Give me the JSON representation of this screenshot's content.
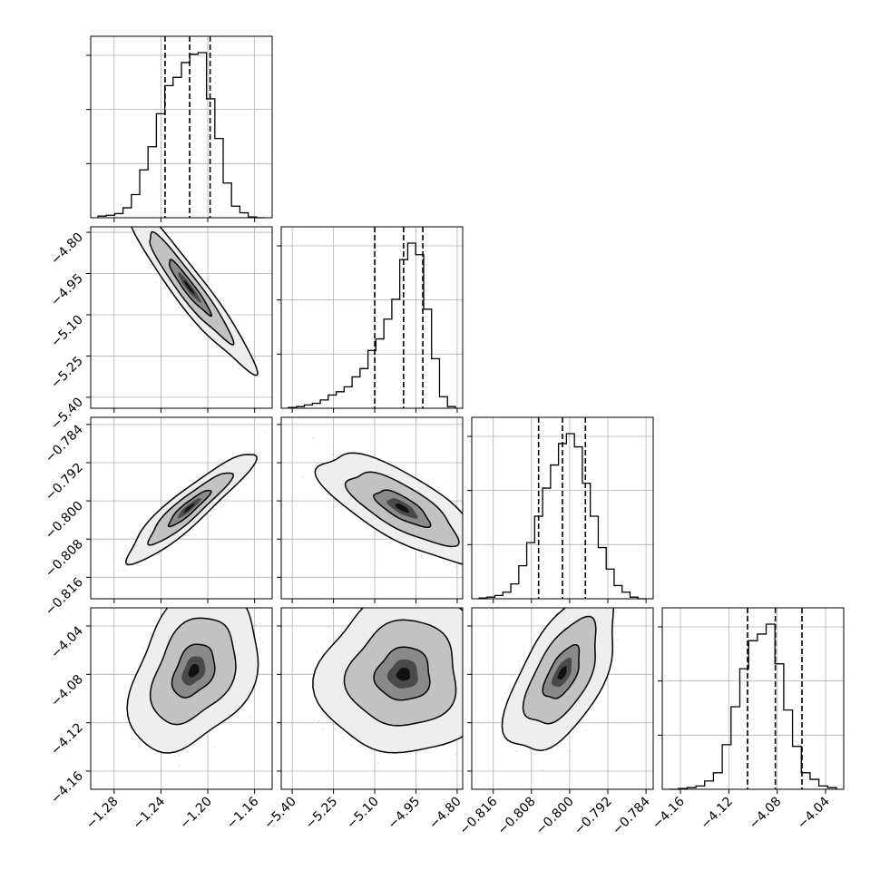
{
  "chart_data": {
    "type": "corner",
    "n_params": 4,
    "grid": true,
    "contour_levels": [
      0.39,
      0.86,
      0.99
    ],
    "quantiles": [
      0.16,
      0.5,
      0.84
    ],
    "params": [
      {
        "range": [
          -1.3,
          -1.145
        ],
        "ticks": [
          -1.28,
          -1.24,
          -1.2,
          -1.16
        ],
        "tick_labels": [
          "−1.28",
          "−1.24",
          "−1.20",
          "−1.16"
        ],
        "hist": [
          0.01,
          0.015,
          0.025,
          0.06,
          0.14,
          0.29,
          0.43,
          0.63,
          0.8,
          0.85,
          0.94,
          0.99,
          1.0,
          0.72,
          0.48,
          0.21,
          0.07,
          0.03,
          0.005,
          0.0
        ],
        "quantile_values": [
          -1.2365,
          -1.2155,
          -1.198
        ]
      },
      {
        "range": [
          -5.44,
          -4.78
        ],
        "ticks": [
          -5.4,
          -5.25,
          -5.1,
          -4.95,
          -4.8
        ],
        "tick_labels": [
          "−5.40",
          "−5.25",
          "−5.10",
          "−4.95",
          "−4.80"
        ],
        "hist": [
          0.005,
          0.01,
          0.02,
          0.03,
          0.05,
          0.08,
          0.1,
          0.13,
          0.19,
          0.24,
          0.35,
          0.42,
          0.54,
          0.66,
          0.9,
          1.0,
          0.93,
          0.6,
          0.3,
          0.07,
          0.01
        ],
        "quantile_values": [
          -5.1,
          -4.995,
          -4.925
        ]
      },
      {
        "range": [
          -0.8205,
          -0.7825
        ],
        "ticks": [
          -0.816,
          -0.808,
          -0.8,
          -0.792,
          -0.784
        ],
        "tick_labels": [
          "−0.816",
          "−0.808",
          "−0.800",
          "−0.792",
          "−0.784"
        ],
        "hist": [
          0.005,
          0.01,
          0.02,
          0.04,
          0.09,
          0.2,
          0.34,
          0.5,
          0.67,
          0.81,
          0.94,
          1.0,
          0.92,
          0.7,
          0.5,
          0.31,
          0.18,
          0.08,
          0.04,
          0.01,
          0.0
        ],
        "quantile_values": [
          -0.8065,
          -0.8015,
          -0.7967
        ]
      },
      {
        "range": [
          -4.175,
          -4.025
        ],
        "ticks": [
          -4.16,
          -4.12,
          -4.08,
          -4.04
        ],
        "tick_labels": [
          "−4.16",
          "−4.12",
          "−4.08",
          "−4.04"
        ],
        "hist": [
          0.0,
          0.005,
          0.01,
          0.02,
          0.05,
          0.1,
          0.27,
          0.5,
          0.73,
          0.9,
          0.94,
          1.0,
          0.76,
          0.48,
          0.26,
          0.1,
          0.06,
          0.02,
          0.01
        ],
        "quantile_values": [
          -4.1045,
          -4.0815,
          -4.0595
        ]
      }
    ],
    "pairs": [
      {
        "x": 0,
        "y": 1,
        "mean": [
          -1.216,
          -5.0
        ],
        "sd": [
          0.018,
          0.1
        ],
        "corr": -0.95
      },
      {
        "x": 0,
        "y": 2,
        "mean": [
          -1.216,
          -0.8015
        ],
        "sd": [
          0.018,
          0.0038
        ],
        "corr": 0.92
      },
      {
        "x": 1,
        "y": 2,
        "mean": [
          -5.0,
          -0.8015
        ],
        "sd": [
          0.1,
          0.0038
        ],
        "corr": -0.75
      },
      {
        "x": 0,
        "y": 3,
        "mean": [
          -1.212,
          -4.077
        ],
        "sd": [
          0.018,
          0.022
        ],
        "corr": 0.35
      },
      {
        "x": 1,
        "y": 3,
        "mean": [
          -4.995,
          -4.08
        ],
        "sd": [
          0.1,
          0.022
        ],
        "corr": 0.05
      },
      {
        "x": 2,
        "y": 3,
        "mean": [
          -0.8015,
          -4.079
        ],
        "sd": [
          0.0038,
          0.022
        ],
        "corr": 0.6
      }
    ]
  }
}
